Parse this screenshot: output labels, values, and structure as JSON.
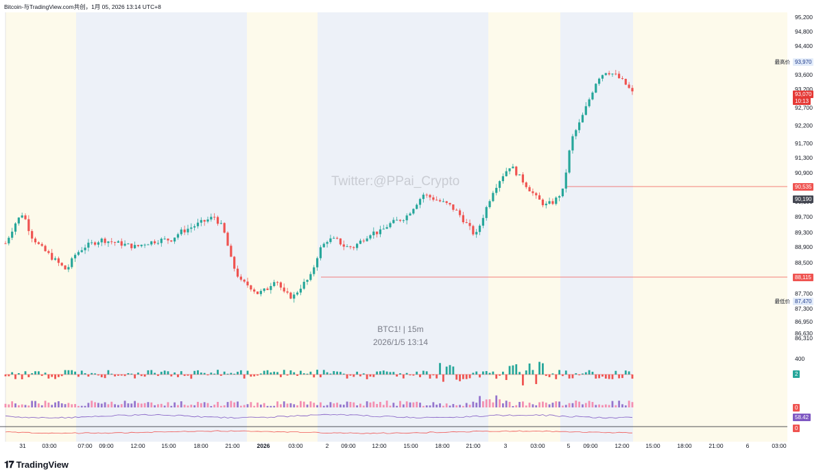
{
  "header": "Bitcoin-与TradingView.com共创，1月 05, 2026 13:14 UTC+8",
  "watermark": "Twitter:@PPai_Crypto",
  "symbol_line": "BTC1! | 15m",
  "symbol_time": "2026/1/5 13:14",
  "logo_text": "TradingView",
  "colors": {
    "up": "#26a69a",
    "down": "#ef5350",
    "session_cream": "#fdfaeb",
    "session_blue": "#edf1f8",
    "ref_line": "#ef5350",
    "rsi_line": "#7e57c2",
    "indicator3_line": "#ef5350"
  },
  "price_labels": {
    "last_price": "93,070",
    "countdown": "10:13",
    "high_tag": "最高价",
    "high_value": "93,970",
    "low_tag": "最低价",
    "low_value": "87,470",
    "line1_value": "90,535",
    "line2_value": "88,115",
    "dark_label": "90,190",
    "volume_label": "2",
    "osc_label": "0",
    "rsi_label": "58.42",
    "ind3_label": "0"
  },
  "chart_data": {
    "type": "candlestick",
    "timeframe": "15m",
    "y_ticks": [
      "95,200",
      "94,800",
      "94,400",
      "94,000",
      "93,600",
      "93,200",
      "92,700",
      "92,200",
      "91,700",
      "91,300",
      "90,900",
      "90,500",
      "90,100",
      "89,700",
      "89,300",
      "88,900",
      "88,500",
      "88,100",
      "87,700",
      "87,300",
      "86,950",
      "86,630",
      "86,310"
    ],
    "sub_tick": "400",
    "x_ticks": [
      "31",
      "03:00",
      "07:00",
      "09:00",
      "12:00",
      "15:00",
      "18:00",
      "21:00",
      "2026",
      "03:00",
      "2",
      "09:00",
      "12:00",
      "15:00",
      "18:00",
      "21:00",
      "3",
      "03:00",
      "5",
      "09:00",
      "12:00",
      "15:00",
      "18:00",
      "21:00",
      "6",
      "03:00"
    ],
    "x_bold": [
      "2026"
    ],
    "reference_lines": [
      90535,
      88115
    ],
    "high": 93970,
    "low": 87470,
    "last": 93070,
    "close_approx": [
      89000,
      89500,
      89800,
      89200,
      88900,
      88700,
      88500,
      88300,
      88700,
      88900,
      89000,
      89100,
      89050,
      89000,
      88950,
      88900,
      89000,
      89050,
      89100,
      89100,
      89300,
      89400,
      89500,
      89600,
      89700,
      89400,
      88500,
      88000,
      87900,
      87700,
      87800,
      88100,
      87700,
      87600,
      87900,
      88100,
      88800,
      89100,
      89100,
      88900,
      88900,
      89100,
      89300,
      89300,
      89500,
      89600,
      89700,
      90000,
      90300,
      90200,
      90100,
      90000,
      89800,
      89500,
      89200,
      89800,
      90400,
      90800,
      91100,
      90800,
      90500,
      90200,
      90000,
      90100,
      90400,
      91800,
      92300,
      92900,
      93500,
      93700,
      93600,
      93400,
      93100
    ]
  }
}
